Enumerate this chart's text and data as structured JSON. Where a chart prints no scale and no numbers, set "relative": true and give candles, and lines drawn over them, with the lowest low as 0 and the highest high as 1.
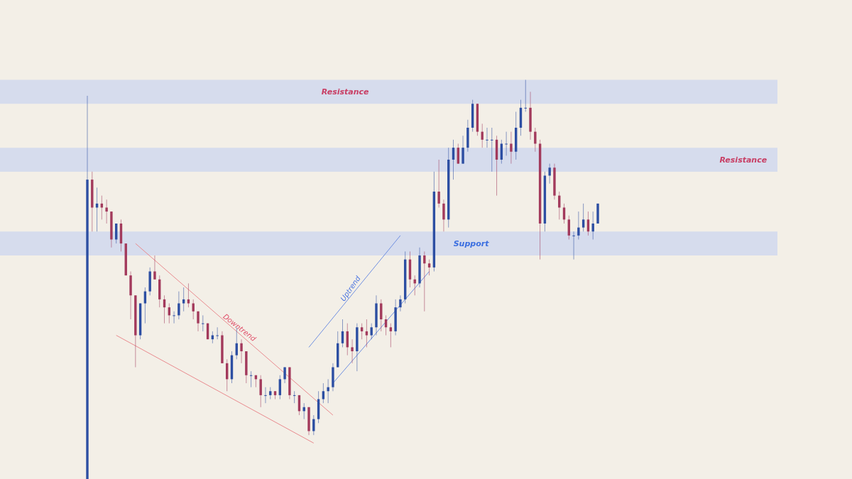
{
  "chart_data": {
    "type": "candlestick",
    "relative": true,
    "tick_labels": false,
    "grid": false,
    "categories": [
      null,
      null,
      null,
      null,
      null,
      null,
      null,
      null,
      null,
      null,
      null,
      null,
      null,
      null,
      null,
      null,
      null,
      null,
      null,
      null,
      null,
      null,
      null,
      null,
      null,
      null,
      null,
      null,
      null,
      null,
      null,
      null,
      null,
      null,
      null,
      null,
      null,
      null,
      null,
      null,
      null,
      null,
      null,
      null,
      null,
      null,
      null,
      null,
      null,
      null,
      null,
      null,
      null,
      null,
      null,
      null,
      null,
      null,
      null,
      null,
      null,
      null,
      null,
      null,
      null,
      null,
      null,
      null,
      null,
      null,
      null,
      null,
      null,
      null,
      null,
      null,
      null,
      null,
      null,
      null,
      null,
      null,
      null,
      null,
      null,
      null,
      null,
      null,
      null,
      null,
      null,
      null,
      null,
      null,
      null,
      null,
      null,
      null,
      null,
      null,
      null,
      null,
      null,
      null,
      null,
      null,
      null
    ],
    "colors": [
      "#2d4fa3",
      "#a33a5c",
      "#2d4fa3",
      "#a33a5c",
      "#a33a5c",
      "#a33a5c",
      "#2d4fa3",
      "#a33a5c",
      "#a33a5c",
      "#a33a5c",
      "#a33a5c",
      "#2d4fa3",
      "#2d4fa3",
      "#2d4fa3",
      "#a33a5c",
      "#a33a5c",
      "#a33a5c",
      "#a33a5c",
      "#2d4fa3",
      "#2d4fa3",
      "#2d4fa3",
      "#a33a5c",
      "#a33a5c",
      "#a33a5c",
      "#2d4fa3",
      "#a33a5c",
      "#2d4fa3",
      "#2d4fa3",
      "#a33a5c",
      "#a33a5c",
      "#2d4fa3",
      "#2d4fa3",
      "#a33a5c",
      "#a33a5c",
      "#2d4fa3",
      "#a33a5c",
      "#a33a5c",
      "#2d4fa3",
      "#2d4fa3",
      "#a33a5c",
      "#2d4fa3",
      "#2d4fa3",
      "#a33a5c",
      "#2d4fa3",
      "#a33a5c",
      "#2d4fa3",
      "#a33a5c",
      "#2d4fa3",
      "#2d4fa3",
      "#2d4fa3",
      "#2d4fa3",
      "#2d4fa3",
      "#2d4fa3",
      "#2d4fa3",
      "#a33a5c",
      "#a33a5c",
      "#2d4fa3",
      "#a33a5c",
      "#a33a5c",
      "#2d4fa3",
      "#2d4fa3",
      "#a33a5c",
      "#a33a5c",
      "#a33a5c",
      "#2d4fa3",
      "#2d4fa3",
      "#2d4fa3",
      "#a33a5c",
      "#a33a5c",
      "#2d4fa3",
      "#a33a5c",
      "#a33a5c",
      "#2d4fa3",
      "#a33a5c",
      "#a33a5c",
      "#2d4fa3",
      "#2d4fa3",
      "#a33a5c",
      "#2d4fa3",
      "#2d4fa3",
      "#2d4fa3",
      "#a33a5c",
      "#a33a5c",
      "#2d4fa3",
      "#2d4fa3",
      "#a33a5c",
      "#2d4fa3",
      "#2d4fa3",
      "#a33a5c",
      "#2d4fa3",
      "#2d4fa3",
      "#2d4fa3",
      "#a33a5c",
      "#a33a5c",
      "#a33a5c",
      "#2d4fa3",
      "#2d4fa3",
      "#a33a5c",
      "#a33a5c",
      "#a33a5c",
      "#a33a5c",
      "#2d4fa3",
      "#2d4fa3",
      "#2d4fa3",
      "#a33a5c",
      "#2d4fa3",
      "#2d4fa3"
    ],
    "ohlc": [
      [
        0,
        0.96,
        0,
        0.75
      ],
      [
        0.75,
        0.77,
        0.62,
        0.68
      ],
      [
        0.68,
        0.73,
        0.62,
        0.69
      ],
      [
        0.69,
        0.71,
        0.65,
        0.68
      ],
      [
        0.68,
        0.7,
        0.64,
        0.67
      ],
      [
        0.67,
        0.67,
        0.58,
        0.6
      ],
      [
        0.6,
        0.64,
        0.59,
        0.64
      ],
      [
        0.64,
        0.65,
        0.57,
        0.59
      ],
      [
        0.59,
        0.59,
        0.51,
        0.51
      ],
      [
        0.51,
        0.52,
        0.4,
        0.46
      ],
      [
        0.46,
        0.46,
        0.28,
        0.36
      ],
      [
        0.36,
        0.44,
        0.35,
        0.44
      ],
      [
        0.44,
        0.48,
        0.39,
        0.47
      ],
      [
        0.47,
        0.53,
        0.46,
        0.52
      ],
      [
        0.52,
        0.56,
        0.5,
        0.5
      ],
      [
        0.5,
        0.51,
        0.43,
        0.45
      ],
      [
        0.45,
        0.46,
        0.39,
        0.43
      ],
      [
        0.43,
        0.44,
        0.39,
        0.41
      ],
      [
        0.41,
        0.42,
        0.39,
        0.41
      ],
      [
        0.41,
        0.47,
        0.4,
        0.44
      ],
      [
        0.44,
        0.48,
        0.42,
        0.45
      ],
      [
        0.45,
        0.49,
        0.43,
        0.44
      ],
      [
        0.44,
        0.45,
        0.4,
        0.42
      ],
      [
        0.42,
        0.42,
        0.37,
        0.39
      ],
      [
        0.39,
        0.41,
        0.37,
        0.39
      ],
      [
        0.39,
        0.39,
        0.35,
        0.35
      ],
      [
        0.35,
        0.37,
        0.34,
        0.36
      ],
      [
        0.36,
        0.38,
        0.35,
        0.36
      ],
      [
        0.36,
        0.37,
        0.29,
        0.29
      ],
      [
        0.29,
        0.3,
        0.22,
        0.25
      ],
      [
        0.25,
        0.32,
        0.24,
        0.31
      ],
      [
        0.31,
        0.38,
        0.3,
        0.34
      ],
      [
        0.34,
        0.35,
        0.29,
        0.32
      ],
      [
        0.32,
        0.32,
        0.24,
        0.26
      ],
      [
        0.26,
        0.27,
        0.23,
        0.26
      ],
      [
        0.26,
        0.26,
        0.23,
        0.25
      ],
      [
        0.25,
        0.26,
        0.18,
        0.21
      ],
      [
        0.21,
        0.23,
        0.19,
        0.21
      ],
      [
        0.21,
        0.23,
        0.2,
        0.22
      ],
      [
        0.22,
        0.22,
        0.2,
        0.21
      ],
      [
        0.21,
        0.26,
        0.2,
        0.25
      ],
      [
        0.25,
        0.28,
        0.24,
        0.28
      ],
      [
        0.28,
        0.28,
        0.2,
        0.21
      ],
      [
        0.21,
        0.22,
        0.19,
        0.21
      ],
      [
        0.21,
        0.21,
        0.16,
        0.17
      ],
      [
        0.17,
        0.19,
        0.15,
        0.18
      ],
      [
        0.18,
        0.18,
        0.11,
        0.12
      ],
      [
        0.12,
        0.16,
        0.11,
        0.15
      ],
      [
        0.15,
        0.22,
        0.14,
        0.2
      ],
      [
        0.2,
        0.24,
        0.19,
        0.22
      ],
      [
        0.22,
        0.25,
        0.19,
        0.23
      ],
      [
        0.23,
        0.29,
        0.22,
        0.28
      ],
      [
        0.28,
        0.37,
        0.28,
        0.34
      ],
      [
        0.34,
        0.4,
        0.33,
        0.37
      ],
      [
        0.37,
        0.39,
        0.31,
        0.33
      ],
      [
        0.33,
        0.35,
        0.29,
        0.32
      ],
      [
        0.32,
        0.39,
        0.27,
        0.38
      ],
      [
        0.38,
        0.39,
        0.35,
        0.37
      ],
      [
        0.37,
        0.4,
        0.33,
        0.36
      ],
      [
        0.36,
        0.39,
        0.35,
        0.38
      ],
      [
        0.38,
        0.46,
        0.36,
        0.44
      ],
      [
        0.44,
        0.45,
        0.37,
        0.4
      ],
      [
        0.4,
        0.41,
        0.36,
        0.38
      ],
      [
        0.38,
        0.39,
        0.33,
        0.37
      ],
      [
        0.37,
        0.45,
        0.36,
        0.43
      ],
      [
        0.43,
        0.46,
        0.42,
        0.45
      ],
      [
        0.45,
        0.57,
        0.44,
        0.55
      ],
      [
        0.55,
        0.57,
        0.48,
        0.5
      ],
      [
        0.5,
        0.51,
        0.46,
        0.49
      ],
      [
        0.49,
        0.58,
        0.48,
        0.56
      ],
      [
        0.56,
        0.57,
        0.42,
        0.54
      ],
      [
        0.54,
        0.55,
        0.51,
        0.53
      ],
      [
        0.53,
        0.77,
        0.52,
        0.72
      ],
      [
        0.72,
        0.8,
        0.68,
        0.69
      ],
      [
        0.69,
        0.7,
        0.62,
        0.65
      ],
      [
        0.65,
        0.83,
        0.63,
        0.8
      ],
      [
        0.8,
        0.85,
        0.75,
        0.83
      ],
      [
        0.83,
        0.84,
        0.79,
        0.79
      ],
      [
        0.79,
        0.86,
        0.79,
        0.83
      ],
      [
        0.83,
        0.9,
        0.82,
        0.88
      ],
      [
        0.88,
        0.95,
        0.87,
        0.94
      ],
      [
        0.94,
        0.94,
        0.86,
        0.87
      ],
      [
        0.87,
        0.89,
        0.83,
        0.85
      ],
      [
        0.85,
        0.88,
        0.83,
        0.85
      ],
      [
        0.85,
        0.88,
        0.77,
        0.85
      ],
      [
        0.85,
        0.86,
        0.71,
        0.8
      ],
      [
        0.8,
        0.85,
        0.79,
        0.84
      ],
      [
        0.84,
        0.87,
        0.81,
        0.84
      ],
      [
        0.84,
        0.87,
        0.79,
        0.82
      ],
      [
        0.82,
        0.92,
        0.8,
        0.88
      ],
      [
        0.88,
        0.95,
        0.86,
        0.93
      ],
      [
        0.93,
        1,
        0.92,
        0.93
      ],
      [
        0.93,
        0.97,
        0.85,
        0.87
      ],
      [
        0.87,
        0.88,
        0.82,
        0.84
      ],
      [
        0.84,
        0.85,
        0.55,
        0.64
      ],
      [
        0.64,
        0.77,
        0.62,
        0.76
      ],
      [
        0.76,
        0.79,
        0.74,
        0.78
      ],
      [
        0.78,
        0.79,
        0.7,
        0.71
      ],
      [
        0.71,
        0.72,
        0.65,
        0.68
      ],
      [
        0.68,
        0.69,
        0.64,
        0.65
      ],
      [
        0.65,
        0.66,
        0.6,
        0.61
      ],
      [
        0.61,
        0.62,
        0.55,
        0.61
      ],
      [
        0.61,
        0.67,
        0.6,
        0.63
      ],
      [
        0.63,
        0.69,
        0.62,
        0.65
      ],
      [
        0.65,
        0.67,
        0.61,
        0.62
      ],
      [
        0.62,
        0.67,
        0.6,
        0.64
      ],
      [
        0.64,
        0.69,
        0.64,
        0.69
      ]
    ],
    "series": [
      {
        "type": "line",
        "color": "#e98a8e",
        "values": [
          null,
          null,
          null,
          null,
          null,
          null,
          null,
          null,
          null,
          null,
          0.59,
          null,
          null,
          null,
          null,
          null,
          null,
          null,
          null,
          null,
          null,
          null,
          null,
          null,
          null,
          null,
          null,
          null,
          null,
          null,
          null,
          null,
          null,
          null,
          null,
          null,
          null,
          null,
          null,
          null,
          null,
          null,
          null,
          null,
          null,
          null,
          null,
          null,
          null,
          null,
          null,
          0.16,
          null,
          null,
          null,
          null,
          null,
          null,
          null,
          null,
          null,
          null,
          null,
          null,
          null,
          null,
          null,
          null,
          null,
          null,
          null,
          null,
          null,
          null,
          null,
          null,
          null,
          null,
          null,
          null,
          null,
          null,
          null,
          null,
          null,
          null,
          null,
          null,
          null,
          null,
          null,
          null,
          null,
          null,
          null,
          null,
          null,
          null,
          null,
          null,
          null,
          null,
          null,
          null,
          null,
          null,
          null
        ]
      },
      {
        "type": "line",
        "color": "#e98a8e",
        "values": [
          null,
          null,
          null,
          null,
          null,
          null,
          0.36,
          null,
          null,
          null,
          null,
          null,
          null,
          null,
          null,
          null,
          null,
          null,
          null,
          null,
          null,
          null,
          null,
          null,
          null,
          null,
          null,
          null,
          null,
          null,
          null,
          null,
          null,
          null,
          null,
          null,
          null,
          null,
          null,
          null,
          null,
          null,
          null,
          null,
          null,
          null,
          null,
          0.09,
          null,
          null,
          null,
          null,
          null,
          null,
          null,
          null,
          null,
          null,
          null,
          null,
          null,
          null,
          null,
          null,
          null,
          null,
          null,
          null,
          null,
          null,
          null,
          null,
          null,
          null,
          null,
          null,
          null,
          null,
          null,
          null,
          null,
          null,
          null,
          null,
          null,
          null,
          null,
          null,
          null,
          null,
          null,
          null,
          null,
          null,
          null,
          null,
          null,
          null,
          null,
          null,
          null,
          null,
          null,
          null,
          null,
          null,
          null
        ]
      },
      {
        "type": "line",
        "color": "#6f8fe0",
        "values": [
          null,
          null,
          null,
          null,
          null,
          null,
          null,
          null,
          null,
          null,
          null,
          null,
          null,
          null,
          null,
          null,
          null,
          null,
          null,
          null,
          null,
          null,
          null,
          null,
          null,
          null,
          null,
          null,
          null,
          null,
          null,
          null,
          null,
          null,
          null,
          null,
          null,
          null,
          null,
          null,
          null,
          null,
          null,
          null,
          null,
          null,
          0.33,
          null,
          null,
          null,
          null,
          null,
          null,
          null,
          null,
          null,
          null,
          null,
          null,
          null,
          null,
          null,
          null,
          null,
          null,
          0.61,
          null,
          null,
          null,
          null,
          null,
          null,
          null,
          null,
          null,
          null,
          null,
          null,
          null,
          null,
          null,
          null,
          null,
          null,
          null,
          null,
          null,
          null,
          null,
          null,
          null,
          null,
          null,
          null,
          null,
          null,
          null,
          null,
          null,
          null,
          null,
          null,
          null,
          null,
          null,
          null,
          null
        ]
      },
      {
        "type": "line",
        "color": "#6f8fe0",
        "values": [
          null,
          null,
          null,
          null,
          null,
          null,
          null,
          null,
          null,
          null,
          null,
          null,
          null,
          null,
          null,
          null,
          null,
          null,
          null,
          null,
          null,
          null,
          null,
          null,
          null,
          null,
          null,
          null,
          null,
          null,
          null,
          null,
          null,
          null,
          null,
          null,
          null,
          null,
          null,
          null,
          null,
          null,
          null,
          null,
          null,
          null,
          null,
          null,
          null,
          null,
          null,
          0.24,
          null,
          null,
          null,
          null,
          null,
          null,
          null,
          null,
          null,
          null,
          null,
          null,
          null,
          null,
          null,
          null,
          null,
          null,
          null,
          0.52,
          null,
          null,
          null,
          null,
          null,
          null,
          null,
          null,
          null,
          null,
          null,
          null,
          null,
          null,
          null,
          null,
          null,
          null,
          null,
          null,
          null,
          null,
          null,
          null,
          null,
          null,
          null,
          null,
          null,
          null,
          null,
          null,
          null,
          null,
          null
        ]
      }
    ],
    "bands": [
      {
        "axis": "y",
        "from": 0.94,
        "to": 1.0,
        "label": "Resistance",
        "color": "#d6dced"
      },
      {
        "axis": "y",
        "from": 0.77,
        "to": 0.83,
        "label": "Resistance",
        "color": "#d6dced"
      },
      {
        "axis": "y",
        "from": 0.56,
        "to": 0.62,
        "label": "Support",
        "color": "#d6dced"
      }
    ],
    "annotations": [
      "Downtrend",
      "Uptrend"
    ]
  }
}
